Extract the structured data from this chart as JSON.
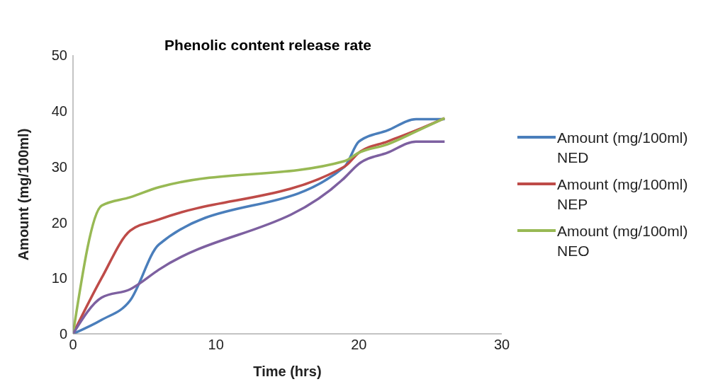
{
  "chart_data": {
    "type": "line",
    "title": "Phenolic content release rate",
    "xlabel": "Time (hrs)",
    "ylabel": "Amount (mg/100ml)",
    "x": [
      0,
      2,
      4,
      6,
      19,
      20,
      22,
      24,
      26
    ],
    "series": [
      {
        "name": "Amount (mg/100ml) NED",
        "color": "#4a7ebb",
        "values": [
          0,
          2.5,
          6,
          16,
          30,
          34.5,
          36.5,
          38.5,
          38.5
        ]
      },
      {
        "name": "Amount (mg/100ml) NEP",
        "color": "#be4b48",
        "values": [
          0,
          10,
          18.5,
          20.5,
          30,
          32.5,
          34.5,
          36.5,
          38.7
        ]
      },
      {
        "name": "Amount (mg/100ml) NEO",
        "color": "#98b954",
        "values": [
          0,
          23,
          24.5,
          26.3,
          31,
          32.5,
          34,
          36.3,
          38.7
        ]
      },
      {
        "color": "#7d60a0",
        "values": [
          0,
          6.5,
          8,
          11.5,
          28,
          30.5,
          32.5,
          34.5,
          34.5
        ]
      }
    ],
    "xlim": [
      0,
      30
    ],
    "xticks": [
      0,
      10,
      20,
      30
    ],
    "ylim": [
      0,
      50
    ],
    "yticks": [
      0,
      10,
      20,
      30,
      40,
      50
    ],
    "grid": false,
    "legend": "right",
    "marker": "none",
    "line_style": "solid"
  }
}
